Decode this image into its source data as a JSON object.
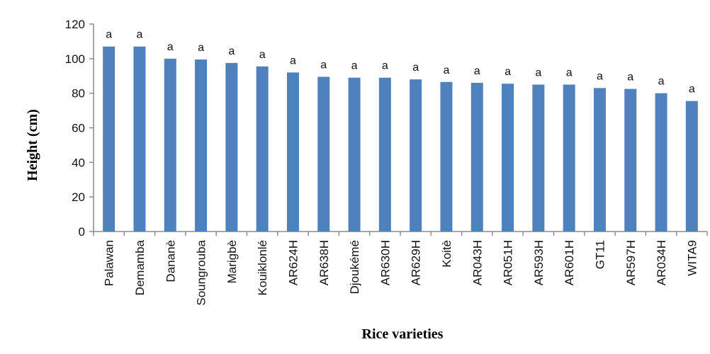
{
  "chart_data": {
    "type": "bar",
    "title": "",
    "xlabel": "Rice varieties",
    "ylabel": "Height (cm)",
    "ylim": [
      0,
      120
    ],
    "yticks": [
      0,
      20,
      40,
      60,
      80,
      100,
      120
    ],
    "categories": [
      "Palawan",
      "Demamba",
      "Dananè",
      "Soungrouba",
      "Marigbè",
      "Kouiklonlé",
      "AR624H",
      "AR638H",
      "Djoukémé",
      "AR630H",
      "AR629H",
      "Koitè",
      "AR043H",
      "AR051H",
      "AR593H",
      "AR601H",
      "GT11",
      "AR597H",
      "AR034H",
      "WITA9"
    ],
    "values": [
      107,
      107,
      100,
      99.5,
      97.5,
      95.5,
      92,
      89.5,
      89,
      89,
      88,
      86.5,
      86,
      85.5,
      85,
      85,
      83,
      82.5,
      80,
      75.5
    ],
    "significance": [
      "a",
      "a",
      "a",
      "a",
      "a",
      "a",
      "a",
      "a",
      "a",
      "a",
      "a",
      "a",
      "a",
      "a",
      "a",
      "a",
      "a",
      "a",
      "a",
      "a"
    ],
    "bar_color": "#4F81BD",
    "axis_color": "#8C8C8C",
    "grid": false,
    "legend": "none"
  }
}
